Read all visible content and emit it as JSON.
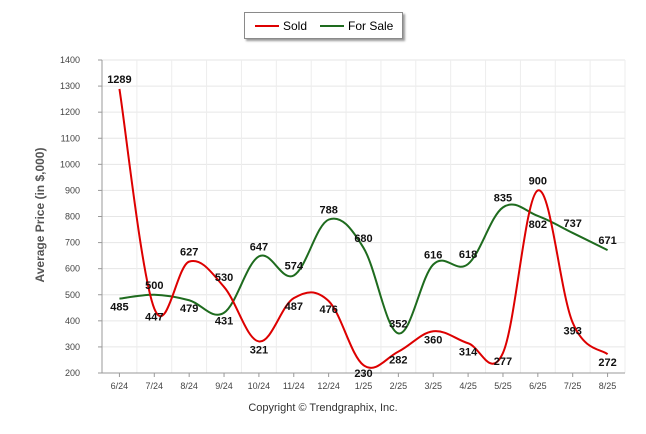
{
  "legend": {
    "sold_label": "Sold",
    "for_sale_label": "For Sale"
  },
  "copyright": "Copyright © Trendgraphix, Inc.",
  "colors": {
    "sold": "#dd0000",
    "for_sale": "#1e6b1e"
  },
  "chart_data": {
    "type": "line",
    "title": "",
    "xlabel": "",
    "ylabel": "Average Price (in $,000)",
    "ylim": [
      200,
      1400
    ],
    "yticks": [
      200,
      300,
      400,
      500,
      600,
      700,
      800,
      900,
      1000,
      1100,
      1200,
      1300,
      1400
    ],
    "grid": true,
    "legend_position": "top-center",
    "categories": [
      "6/24",
      "7/24",
      "8/24",
      "9/24",
      "10/24",
      "11/24",
      "12/24",
      "1/25",
      "2/25",
      "3/25",
      "4/25",
      "5/25",
      "6/25",
      "7/25",
      "8/25"
    ],
    "series": [
      {
        "name": "Sold",
        "color": "#dd0000",
        "values": [
          1289,
          447,
          627,
          530,
          321,
          487,
          476,
          230,
          282,
          360,
          314,
          277,
          900,
          393,
          272
        ]
      },
      {
        "name": "For Sale",
        "color": "#1e6b1e",
        "values": [
          485,
          500,
          479,
          431,
          647,
          574,
          788,
          680,
          352,
          616,
          618,
          835,
          802,
          737,
          671
        ]
      }
    ]
  }
}
